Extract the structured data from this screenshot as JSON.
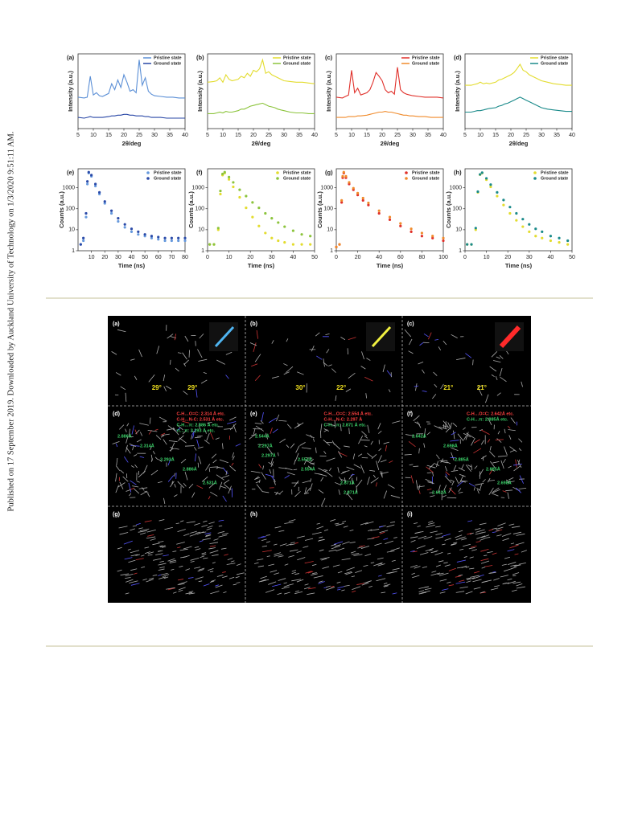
{
  "side_note": "Published on 17 September 2019. Downloaded by Auckland University of Technology on 1/3/2020 9:51:11 AM.",
  "chart_data": [
    {
      "type": "line",
      "label": "(a)",
      "xlabel": "2θ/deg",
      "ylabel": "Intensity (a.u.)",
      "x": [
        5,
        7,
        8,
        9,
        10,
        11,
        12,
        13,
        15,
        16,
        17,
        18,
        19,
        20,
        21,
        22,
        23,
        24,
        25,
        26,
        27,
        28,
        29,
        30,
        32,
        34,
        36,
        38,
        40
      ],
      "xlim": [
        5,
        40
      ],
      "xticks": [
        5,
        10,
        15,
        20,
        25,
        30,
        35,
        40
      ],
      "ylim": [
        0,
        100
      ],
      "series": [
        {
          "name": "Pristine state",
          "color": "#5b8fd6",
          "values": [
            42,
            41,
            42,
            70,
            45,
            48,
            44,
            43,
            47,
            60,
            52,
            65,
            55,
            72,
            62,
            50,
            52,
            48,
            92,
            58,
            68,
            50,
            46,
            44,
            43,
            42,
            42,
            41,
            41
          ]
        },
        {
          "name": "Ground state",
          "color": "#2947a6",
          "values": [
            15,
            14,
            15,
            16,
            15,
            15,
            15,
            15,
            16,
            17,
            17,
            18,
            18,
            19,
            19,
            18,
            18,
            17,
            17,
            17,
            16,
            16,
            15,
            15,
            15,
            14,
            14,
            14,
            14
          ]
        }
      ]
    },
    {
      "type": "line",
      "label": "(b)",
      "xlabel": "2θ/deg",
      "ylabel": "Intensity (a.u.)",
      "x": [
        5,
        7,
        8,
        9,
        10,
        11,
        12,
        13,
        15,
        16,
        17,
        18,
        19,
        20,
        21,
        22,
        23,
        24,
        25,
        26,
        27,
        28,
        29,
        30,
        32,
        34,
        36,
        38,
        40
      ],
      "xlim": [
        5,
        40
      ],
      "xticks": [
        5,
        10,
        15,
        20,
        25,
        30,
        35,
        40
      ],
      "ylim": [
        0,
        100
      ],
      "series": [
        {
          "name": "Pristine state",
          "color": "#e3dc2e",
          "values": [
            62,
            63,
            64,
            68,
            62,
            72,
            66,
            64,
            66,
            70,
            68,
            74,
            70,
            78,
            76,
            80,
            92,
            74,
            76,
            72,
            70,
            68,
            66,
            64,
            63,
            62,
            62,
            61,
            60
          ]
        },
        {
          "name": "Ground state",
          "color": "#8cc43c",
          "values": [
            20,
            20,
            21,
            22,
            21,
            23,
            22,
            22,
            24,
            26,
            26,
            28,
            30,
            31,
            32,
            33,
            34,
            32,
            30,
            29,
            28,
            26,
            25,
            24,
            22,
            21,
            21,
            20,
            20
          ]
        }
      ]
    },
    {
      "type": "line",
      "label": "(c)",
      "xlabel": "2θ/deg",
      "ylabel": "Intensity (a.u.)",
      "x": [
        5,
        7,
        8,
        9,
        10,
        11,
        12,
        13,
        15,
        16,
        17,
        18,
        19,
        20,
        21,
        22,
        23,
        24,
        25,
        26,
        27,
        28,
        29,
        30,
        32,
        34,
        36,
        38,
        40
      ],
      "xlim": [
        5,
        40
      ],
      "xticks": [
        5,
        10,
        15,
        20,
        25,
        30,
        35,
        40
      ],
      "ylim": [
        0,
        100
      ],
      "series": [
        {
          "name": "Pristine state",
          "color": "#e0302a",
          "values": [
            42,
            41,
            43,
            45,
            78,
            48,
            54,
            45,
            48,
            52,
            62,
            75,
            70,
            64,
            52,
            48,
            50,
            46,
            82,
            52,
            48,
            46,
            45,
            44,
            43,
            42,
            42,
            42,
            41
          ]
        },
        {
          "name": "Ground state",
          "color": "#f08a2a",
          "values": [
            15,
            15,
            15,
            16,
            16,
            16,
            17,
            17,
            18,
            19,
            20,
            21,
            22,
            22,
            23,
            22,
            22,
            21,
            20,
            19,
            18,
            18,
            17,
            17,
            16,
            16,
            15,
            15,
            15
          ]
        }
      ]
    },
    {
      "type": "line",
      "label": "(d)",
      "xlabel": "2θ/deg",
      "ylabel": "Intensity (a.u.)",
      "x": [
        5,
        7,
        8,
        9,
        10,
        11,
        12,
        13,
        15,
        16,
        17,
        18,
        19,
        20,
        21,
        22,
        23,
        24,
        25,
        26,
        27,
        28,
        29,
        30,
        32,
        34,
        36,
        38,
        40
      ],
      "xlim": [
        5,
        40
      ],
      "xticks": [
        5,
        10,
        15,
        20,
        25,
        30,
        35,
        40
      ],
      "ylim": [
        0,
        100
      ],
      "series": [
        {
          "name": "Pristine state",
          "color": "#e3dc2e",
          "values": [
            58,
            58,
            59,
            60,
            62,
            60,
            61,
            60,
            62,
            65,
            66,
            68,
            70,
            72,
            75,
            80,
            86,
            78,
            76,
            72,
            70,
            68,
            66,
            64,
            62,
            60,
            59,
            58,
            58
          ]
        },
        {
          "name": "Ground state",
          "color": "#1a8a8a",
          "values": [
            22,
            22,
            23,
            24,
            24,
            25,
            26,
            27,
            28,
            30,
            31,
            33,
            34,
            36,
            38,
            40,
            42,
            40,
            38,
            36,
            34,
            32,
            30,
            28,
            26,
            25,
            24,
            23,
            23
          ]
        }
      ]
    },
    {
      "type": "scatter",
      "label": "(e)",
      "xlabel": "Time (ns)",
      "ylabel": "Counts (a.u.)",
      "log_y": true,
      "x": [
        2,
        4,
        6,
        7,
        8,
        10,
        13,
        16,
        20,
        25,
        30,
        35,
        40,
        45,
        50,
        55,
        60,
        65,
        70,
        75,
        80
      ],
      "xlim": [
        0,
        80
      ],
      "xticks": [
        10,
        20,
        30,
        40,
        50,
        60,
        70,
        80
      ],
      "ylim": [
        1,
        8000
      ],
      "yticks": [
        1,
        10,
        100,
        1000
      ],
      "series": [
        {
          "name": "Pristine state",
          "color": "#6699dd",
          "values": [
            2,
            3,
            40,
            1500,
            5000,
            3500,
            1200,
            500,
            180,
            60,
            25,
            13,
            8,
            6,
            5,
            4,
            3.5,
            3,
            3,
            3,
            3
          ]
        },
        {
          "name": "Ground state",
          "color": "#2a4aa8",
          "values": [
            2,
            4,
            60,
            2000,
            5500,
            4000,
            1500,
            600,
            220,
            80,
            35,
            18,
            11,
            8,
            6,
            5,
            4.5,
            4,
            4,
            4,
            4
          ]
        }
      ]
    },
    {
      "type": "scatter",
      "label": "(f)",
      "xlabel": "Time (ns)",
      "ylabel": "Counts (a.u.)",
      "log_y": true,
      "x": [
        1,
        3,
        5,
        6,
        7,
        8,
        10,
        12,
        15,
        18,
        21,
        24,
        27,
        30,
        33,
        36,
        40,
        44,
        48
      ],
      "xlim": [
        0,
        50
      ],
      "xticks": [
        0,
        10,
        20,
        30,
        40,
        50
      ],
      "ylim": [
        1,
        8000
      ],
      "yticks": [
        1,
        10,
        100,
        1000
      ],
      "series": [
        {
          "name": "Pristine state",
          "color": "#e3dc2e",
          "values": [
            2,
            2,
            10,
            500,
            4000,
            5000,
            2500,
            1100,
            350,
            110,
            40,
            15,
            7,
            4,
            3,
            2.5,
            2,
            2,
            2
          ]
        },
        {
          "name": "Ground state",
          "color": "#8cc43c",
          "values": [
            2,
            2,
            12,
            700,
            4500,
            5500,
            3200,
            1800,
            800,
            400,
            200,
            110,
            60,
            35,
            22,
            14,
            9,
            6,
            5
          ]
        }
      ]
    },
    {
      "type": "scatter",
      "label": "(g)",
      "xlabel": "Time (ns)",
      "ylabel": "Counts (a.u.)",
      "log_y": true,
      "x": [
        0,
        3,
        5,
        6,
        7,
        9,
        12,
        16,
        20,
        25,
        30,
        40,
        50,
        60,
        70,
        80,
        90,
        100
      ],
      "xlim": [
        0,
        100
      ],
      "xticks": [
        0,
        20,
        40,
        60,
        80,
        100
      ],
      "ylim": [
        1,
        8000
      ],
      "yticks": [
        1,
        10,
        100,
        1000
      ],
      "series": [
        {
          "name": "Pristine state",
          "color": "#e0302a",
          "values": [
            1.5,
            2,
            200,
            3000,
            5000,
            3000,
            1500,
            800,
            450,
            250,
            150,
            60,
            30,
            15,
            8,
            5,
            4,
            3
          ]
        },
        {
          "name": "Ground state",
          "color": "#f08a2a",
          "values": [
            1.5,
            2,
            250,
            3500,
            5500,
            3500,
            1800,
            950,
            550,
            320,
            190,
            80,
            40,
            20,
            11,
            7,
            5,
            4
          ]
        }
      ]
    },
    {
      "type": "scatter",
      "label": "(h)",
      "xlabel": "Time (ns)",
      "ylabel": "Counts (a.u.)",
      "log_y": true,
      "x": [
        1,
        3,
        5,
        6,
        7,
        8,
        10,
        12,
        15,
        18,
        21,
        24,
        27,
        30,
        33,
        36,
        40,
        44,
        48
      ],
      "xlim": [
        0,
        50
      ],
      "xticks": [
        0,
        10,
        20,
        30,
        40,
        50
      ],
      "ylim": [
        1,
        8000
      ],
      "yticks": [
        1,
        10,
        100,
        1000
      ],
      "series": [
        {
          "name": "Pristine state",
          "color": "#e3dc2e",
          "values": [
            2,
            2,
            10,
            600,
            4200,
            5000,
            2400,
            1100,
            400,
            150,
            60,
            28,
            14,
            8,
            5,
            4,
            3,
            2.5,
            2
          ]
        },
        {
          "name": "Ground state",
          "color": "#1a8a8a",
          "values": [
            2,
            2,
            12,
            650,
            4300,
            5200,
            2800,
            1400,
            600,
            260,
            120,
            60,
            32,
            18,
            11,
            8,
            5,
            4,
            3
          ]
        }
      ]
    }
  ],
  "figure2": {
    "panels": [
      {
        "label": "(a)",
        "angles": [
          "29°",
          "29°"
        ]
      },
      {
        "label": "(b)",
        "angles": [
          "30°",
          "22°"
        ]
      },
      {
        "label": "(c)",
        "angles": [
          "21°",
          "21°"
        ]
      },
      {
        "label": "(d)",
        "contacts": [
          "C-H…O=C: 2.314 Å etc.",
          "C-H…N-C: 2.531 Å etc.",
          "C-H…π: 2.886 Å etc.",
          "π…π: 3.293 Å etc."
        ],
        "distances": [
          "2.886Å",
          "3.293Å",
          "2.531Å",
          "2.314Å",
          "2.886Å"
        ]
      },
      {
        "label": "(e)",
        "contacts": [
          "C-H…O=C: 2.554 Å etc.",
          "C-H…N-C: 2.297 Å",
          "C-H…π: 2.871 Å etc."
        ],
        "distances": [
          "2.544Å",
          "2.554Å",
          "2.871Å",
          "2.297Å",
          "2.554Å",
          "2.871Å",
          "2.297Å"
        ]
      },
      {
        "label": "(f)",
        "contacts": [
          "C-H…O=C: 2.642Å etc.",
          "C-H…π: 2.885Å etc."
        ],
        "distances": [
          "2.642Å",
          "2.885Å",
          "2.698Å",
          "2.698Å",
          "2.885Å",
          "2.642Å"
        ]
      },
      {
        "label": "(g)"
      },
      {
        "label": "(h)"
      },
      {
        "label": "(i)"
      }
    ]
  }
}
